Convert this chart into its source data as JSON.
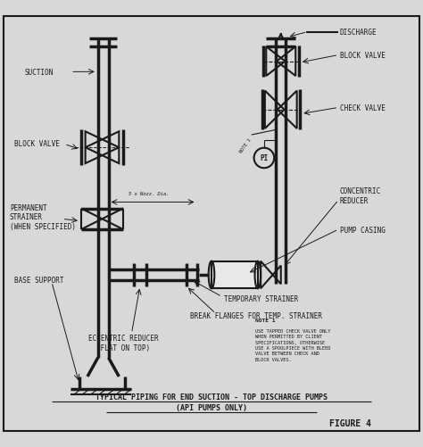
{
  "bg_color": "#d8d8d8",
  "inner_bg": "#e8e8e8",
  "line_color": "#1a1a1a",
  "title": "TYPICAL PIPING FOR END SUCTION - TOP DISCHARGE PUMPS",
  "subtitle": "(API PUMPS ONLY)",
  "figure_label": "FIGURE 4",
  "note1_title": "NOTE 1",
  "note1_text": "USE TAPPED CHECK VALVE ONLY\nWHEN PERMITTED BY CLIENT\nSPECIFICATIONS, OTHERWISE\nUSE A SPOOLPIECE WITH BLEED\nVALVE BETWEEN CHECK AND\nBLOCK VALVES.",
  "labels": {
    "discharge": "DISCHARGE",
    "block_valve_top": "BLOCK VALVE",
    "check_valve": "CHECK VALVE",
    "pi": "PI",
    "concentric_reducer": "CONCENTRIC\nREDUCER",
    "pump_casing": "PUMP CASING",
    "temp_strainer": "TEMPORARY STRAINER",
    "break_flanges": "BREAK FLANGES FOR TEMP. STRAINER",
    "eccentric_reducer": "ECCENTRIC REDUCER\n(FLAT ON TOP)",
    "suction": "SUCTION",
    "block_valve_left": "BLOCK VALVE",
    "permanent_strainer": "PERMANENT\nSTRAINER\n(WHEN SPECIFIED)",
    "base_support": "BASE SUPPORT",
    "dim_label": "5 x Nozz. Dia."
  }
}
